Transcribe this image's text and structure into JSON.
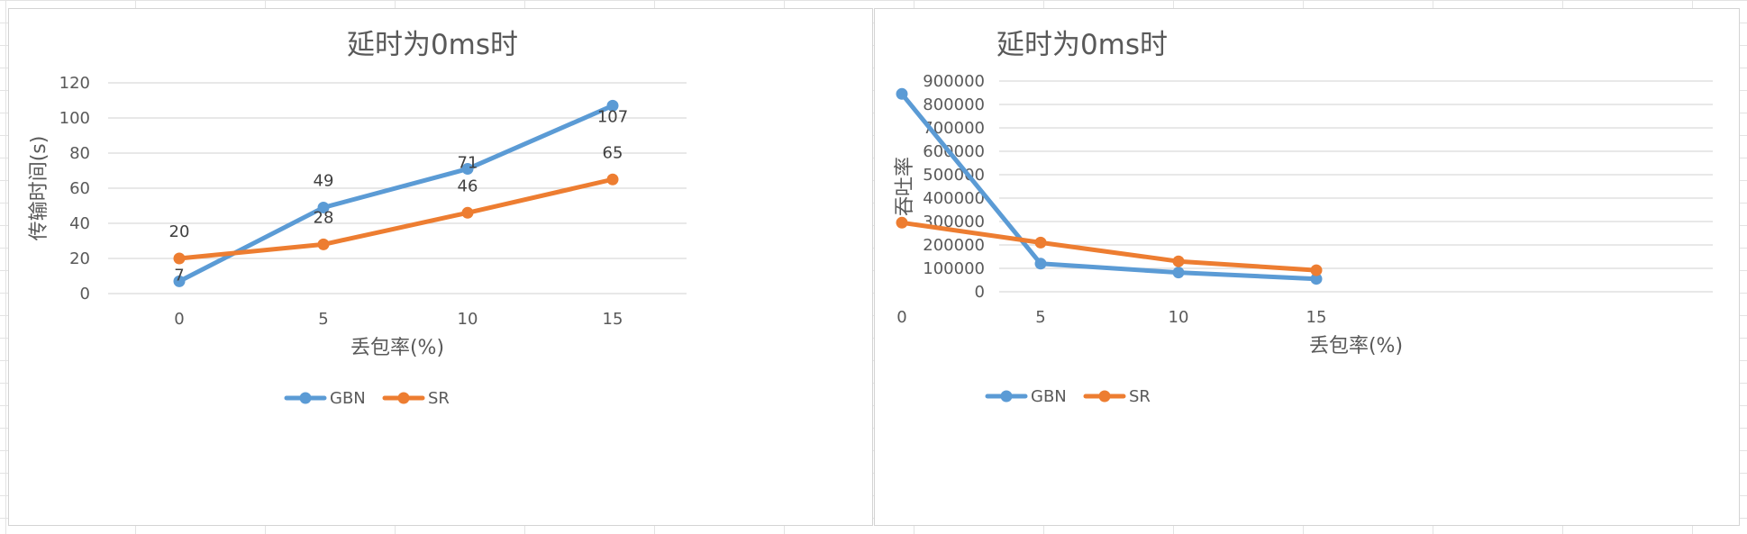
{
  "chart_data": [
    {
      "type": "line",
      "title": "延时为0ms时",
      "xlabel": "丢包率(%)",
      "ylabel": "传输时间(s)",
      "categories": [
        "0",
        "5",
        "10",
        "15"
      ],
      "yticks": [
        "0",
        "20",
        "40",
        "60",
        "80",
        "100",
        "120"
      ],
      "ylim": [
        0,
        120
      ],
      "grid": true,
      "legend": "bottom",
      "series": [
        {
          "name": "GBN",
          "values": [
            7,
            49,
            71,
            107
          ],
          "color": "#5b9bd5"
        },
        {
          "name": "SR",
          "values": [
            20,
            28,
            46,
            65
          ],
          "color": "#ed7d31"
        }
      ],
      "data_labels": true
    },
    {
      "type": "line",
      "title": "延时为0ms时",
      "xlabel": "丢包率(%)",
      "ylabel": "吞吐率",
      "categories": [
        "0",
        "5",
        "10",
        "15"
      ],
      "yticks": [
        "0",
        "100000",
        "200000",
        "300000",
        "400000",
        "500000",
        "600000",
        "700000",
        "800000",
        "900000"
      ],
      "ylim": [
        0,
        900000
      ],
      "grid": true,
      "legend": "bottom",
      "series": [
        {
          "name": "GBN",
          "values": [
            845000,
            120000,
            82000,
            55000
          ],
          "color": "#5b9bd5"
        },
        {
          "name": "SR",
          "values": [
            295000,
            210000,
            130000,
            92000
          ],
          "color": "#ed7d31"
        }
      ],
      "data_labels": false
    }
  ]
}
